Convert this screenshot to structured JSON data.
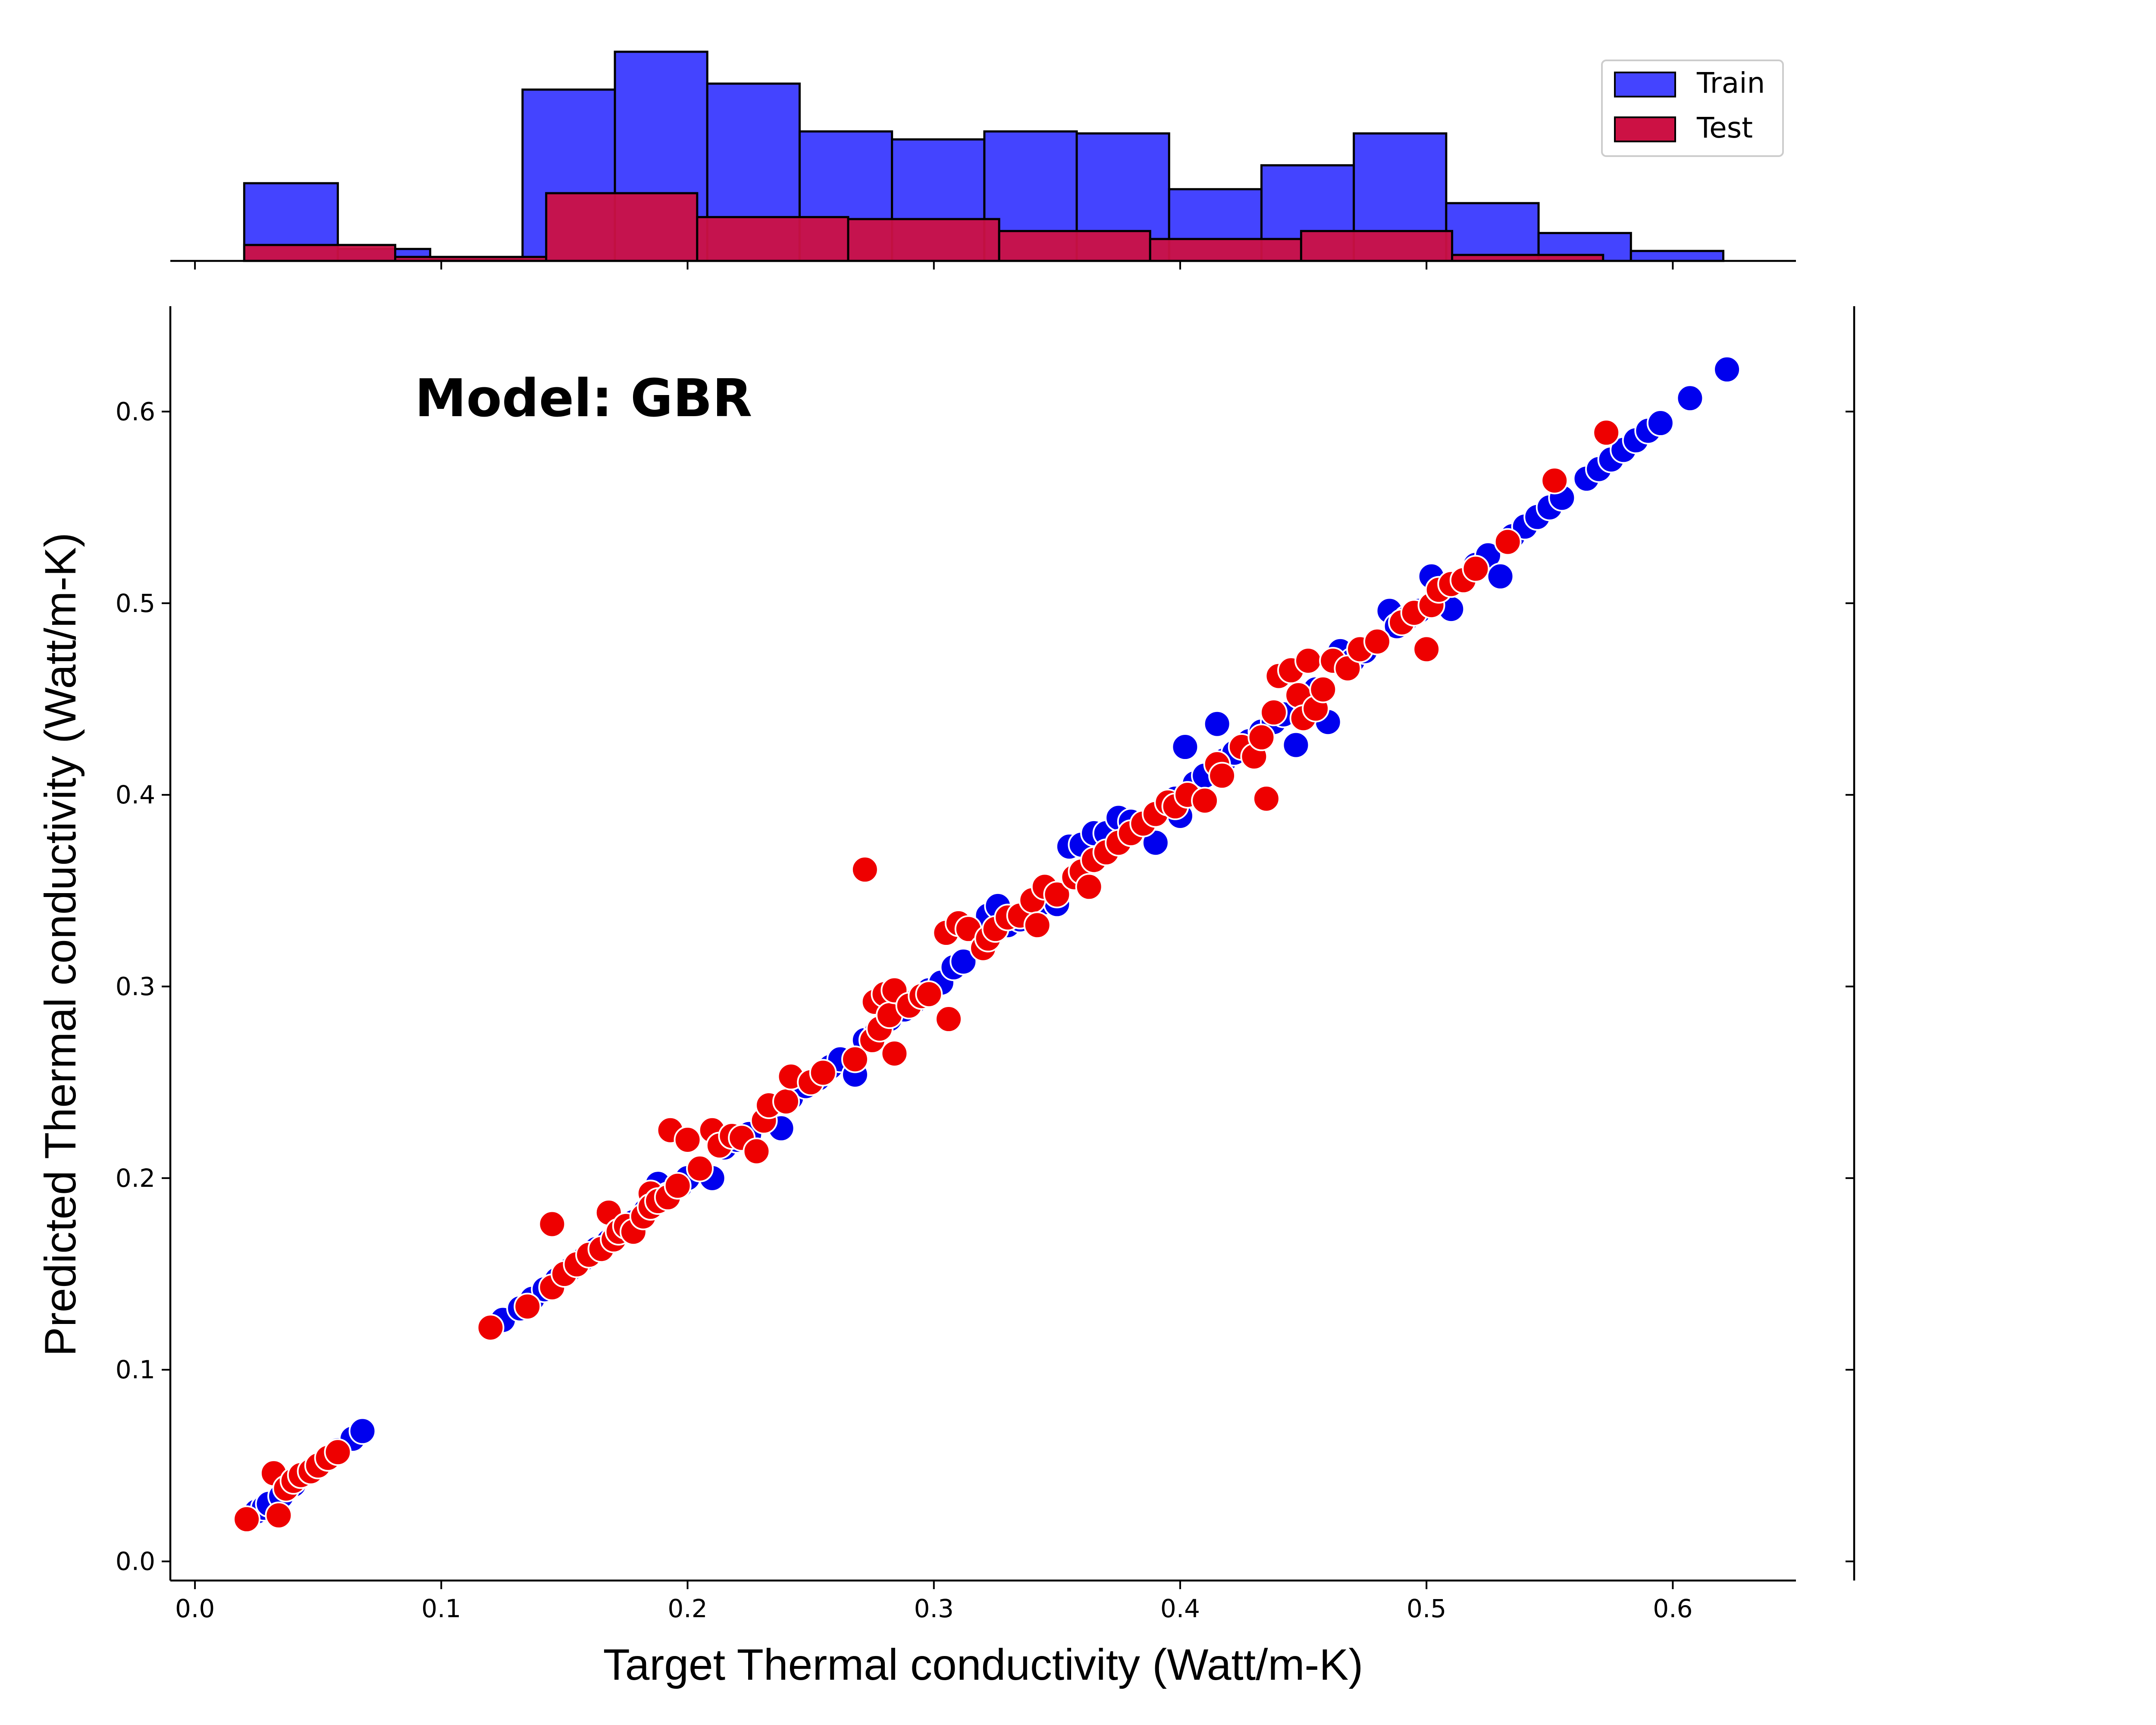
{
  "chart_data": {
    "type": "scatter",
    "annotation": "Model: GBR",
    "xlabel": "Target Thermal conductivity (Watt/m-K)",
    "ylabel": "Predicted Thermal conductivity (Watt/m-K)",
    "xlim": [
      -0.01,
      0.65
    ],
    "ylim": [
      -0.01,
      0.655
    ],
    "x_ticks": [
      "0.0",
      "0.1",
      "0.2",
      "0.3",
      "0.4",
      "0.5",
      "0.6"
    ],
    "y_ticks": [
      "0.0",
      "0.1",
      "0.2",
      "0.3",
      "0.4",
      "0.5",
      "0.6"
    ],
    "grid": false,
    "colors": {
      "train": "#0000ee",
      "test": "#ee0000",
      "train_hist": "#4444ff",
      "test_hist": "#cc1144"
    },
    "legend": {
      "position": "top-right",
      "entries": [
        "Train",
        "Test"
      ]
    },
    "series": [
      {
        "name": "Train",
        "points": [
          [
            0.021,
            0.022
          ],
          [
            0.025,
            0.026
          ],
          [
            0.028,
            0.028
          ],
          [
            0.03,
            0.03
          ],
          [
            0.035,
            0.034
          ],
          [
            0.04,
            0.04
          ],
          [
            0.046,
            0.047
          ],
          [
            0.052,
            0.052
          ],
          [
            0.058,
            0.058
          ],
          [
            0.064,
            0.064
          ],
          [
            0.068,
            0.068
          ],
          [
            0.125,
            0.126
          ],
          [
            0.132,
            0.132
          ],
          [
            0.137,
            0.137
          ],
          [
            0.142,
            0.142
          ],
          [
            0.147,
            0.147
          ],
          [
            0.152,
            0.152
          ],
          [
            0.158,
            0.158
          ],
          [
            0.163,
            0.163
          ],
          [
            0.168,
            0.167
          ],
          [
            0.172,
            0.172
          ],
          [
            0.178,
            0.177
          ],
          [
            0.183,
            0.183
          ],
          [
            0.188,
            0.197
          ],
          [
            0.192,
            0.191
          ],
          [
            0.197,
            0.196
          ],
          [
            0.2,
            0.2
          ],
          [
            0.205,
            0.205
          ],
          [
            0.21,
            0.2
          ],
          [
            0.215,
            0.216
          ],
          [
            0.22,
            0.22
          ],
          [
            0.225,
            0.223
          ],
          [
            0.232,
            0.23
          ],
          [
            0.238,
            0.226
          ],
          [
            0.242,
            0.242
          ],
          [
            0.248,
            0.248
          ],
          [
            0.253,
            0.252
          ],
          [
            0.258,
            0.258
          ],
          [
            0.262,
            0.262
          ],
          [
            0.268,
            0.254
          ],
          [
            0.272,
            0.272
          ],
          [
            0.277,
            0.277
          ],
          [
            0.282,
            0.283
          ],
          [
            0.288,
            0.288
          ],
          [
            0.292,
            0.292
          ],
          [
            0.298,
            0.298
          ],
          [
            0.303,
            0.302
          ],
          [
            0.308,
            0.31
          ],
          [
            0.312,
            0.313
          ],
          [
            0.318,
            0.33
          ],
          [
            0.322,
            0.337
          ],
          [
            0.326,
            0.342
          ],
          [
            0.33,
            0.332
          ],
          [
            0.335,
            0.335
          ],
          [
            0.34,
            0.34
          ],
          [
            0.345,
            0.344
          ],
          [
            0.35,
            0.343
          ],
          [
            0.355,
            0.373
          ],
          [
            0.36,
            0.374
          ],
          [
            0.365,
            0.38
          ],
          [
            0.37,
            0.38
          ],
          [
            0.375,
            0.388
          ],
          [
            0.38,
            0.386
          ],
          [
            0.385,
            0.383
          ],
          [
            0.39,
            0.375
          ],
          [
            0.394,
            0.394
          ],
          [
            0.398,
            0.398
          ],
          [
            0.4,
            0.389
          ],
          [
            0.402,
            0.425
          ],
          [
            0.406,
            0.406
          ],
          [
            0.41,
            0.41
          ],
          [
            0.415,
            0.437
          ],
          [
            0.418,
            0.418
          ],
          [
            0.422,
            0.422
          ],
          [
            0.428,
            0.428
          ],
          [
            0.433,
            0.433
          ],
          [
            0.438,
            0.438
          ],
          [
            0.442,
            0.442
          ],
          [
            0.447,
            0.426
          ],
          [
            0.45,
            0.45
          ],
          [
            0.455,
            0.455
          ],
          [
            0.46,
            0.438
          ],
          [
            0.465,
            0.475
          ],
          [
            0.47,
            0.47
          ],
          [
            0.475,
            0.475
          ],
          [
            0.48,
            0.48
          ],
          [
            0.485,
            0.496
          ],
          [
            0.488,
            0.488
          ],
          [
            0.492,
            0.492
          ],
          [
            0.497,
            0.496
          ],
          [
            0.502,
            0.514
          ],
          [
            0.506,
            0.506
          ],
          [
            0.51,
            0.497
          ],
          [
            0.515,
            0.512
          ],
          [
            0.52,
            0.52
          ],
          [
            0.525,
            0.525
          ],
          [
            0.53,
            0.514
          ],
          [
            0.535,
            0.535
          ],
          [
            0.54,
            0.54
          ],
          [
            0.545,
            0.545
          ],
          [
            0.55,
            0.55
          ],
          [
            0.555,
            0.555
          ],
          [
            0.565,
            0.565
          ],
          [
            0.57,
            0.57
          ],
          [
            0.575,
            0.575
          ],
          [
            0.58,
            0.58
          ],
          [
            0.585,
            0.585
          ],
          [
            0.59,
            0.59
          ],
          [
            0.595,
            0.594
          ],
          [
            0.607,
            0.607
          ],
          [
            0.622,
            0.622
          ]
        ]
      },
      {
        "name": "Test",
        "points": [
          [
            0.021,
            0.022
          ],
          [
            0.032,
            0.046
          ],
          [
            0.034,
            0.024
          ],
          [
            0.037,
            0.038
          ],
          [
            0.04,
            0.042
          ],
          [
            0.043,
            0.045
          ],
          [
            0.047,
            0.047
          ],
          [
            0.05,
            0.05
          ],
          [
            0.054,
            0.054
          ],
          [
            0.058,
            0.057
          ],
          [
            0.12,
            0.122
          ],
          [
            0.135,
            0.133
          ],
          [
            0.145,
            0.143
          ],
          [
            0.145,
            0.176
          ],
          [
            0.15,
            0.15
          ],
          [
            0.155,
            0.155
          ],
          [
            0.16,
            0.16
          ],
          [
            0.165,
            0.163
          ],
          [
            0.168,
            0.182
          ],
          [
            0.17,
            0.168
          ],
          [
            0.172,
            0.172
          ],
          [
            0.175,
            0.175
          ],
          [
            0.178,
            0.172
          ],
          [
            0.182,
            0.18
          ],
          [
            0.185,
            0.192
          ],
          [
            0.185,
            0.185
          ],
          [
            0.188,
            0.188
          ],
          [
            0.192,
            0.19
          ],
          [
            0.193,
            0.225
          ],
          [
            0.196,
            0.196
          ],
          [
            0.2,
            0.22
          ],
          [
            0.205,
            0.205
          ],
          [
            0.21,
            0.225
          ],
          [
            0.213,
            0.217
          ],
          [
            0.218,
            0.222
          ],
          [
            0.222,
            0.221
          ],
          [
            0.228,
            0.214
          ],
          [
            0.231,
            0.23
          ],
          [
            0.233,
            0.238
          ],
          [
            0.24,
            0.24
          ],
          [
            0.242,
            0.253
          ],
          [
            0.25,
            0.25
          ],
          [
            0.255,
            0.255
          ],
          [
            0.268,
            0.262
          ],
          [
            0.272,
            0.361
          ],
          [
            0.275,
            0.272
          ],
          [
            0.276,
            0.292
          ],
          [
            0.278,
            0.278
          ],
          [
            0.28,
            0.296
          ],
          [
            0.282,
            0.285
          ],
          [
            0.284,
            0.298
          ],
          [
            0.284,
            0.265
          ],
          [
            0.29,
            0.29
          ],
          [
            0.295,
            0.295
          ],
          [
            0.298,
            0.296
          ],
          [
            0.305,
            0.328
          ],
          [
            0.306,
            0.283
          ],
          [
            0.31,
            0.333
          ],
          [
            0.314,
            0.33
          ],
          [
            0.32,
            0.32
          ],
          [
            0.322,
            0.325
          ],
          [
            0.325,
            0.33
          ],
          [
            0.33,
            0.336
          ],
          [
            0.335,
            0.337
          ],
          [
            0.34,
            0.345
          ],
          [
            0.342,
            0.332
          ],
          [
            0.345,
            0.352
          ],
          [
            0.35,
            0.348
          ],
          [
            0.357,
            0.357
          ],
          [
            0.36,
            0.36
          ],
          [
            0.363,
            0.352
          ],
          [
            0.365,
            0.366
          ],
          [
            0.37,
            0.37
          ],
          [
            0.375,
            0.375
          ],
          [
            0.38,
            0.38
          ],
          [
            0.385,
            0.385
          ],
          [
            0.39,
            0.39
          ],
          [
            0.395,
            0.396
          ],
          [
            0.398,
            0.394
          ],
          [
            0.403,
            0.4
          ],
          [
            0.41,
            0.397
          ],
          [
            0.415,
            0.416
          ],
          [
            0.417,
            0.41
          ],
          [
            0.425,
            0.425
          ],
          [
            0.43,
            0.42
          ],
          [
            0.433,
            0.43
          ],
          [
            0.435,
            0.398
          ],
          [
            0.438,
            0.443
          ],
          [
            0.44,
            0.462
          ],
          [
            0.445,
            0.465
          ],
          [
            0.448,
            0.452
          ],
          [
            0.45,
            0.44
          ],
          [
            0.452,
            0.47
          ],
          [
            0.455,
            0.445
          ],
          [
            0.458,
            0.455
          ],
          [
            0.462,
            0.47
          ],
          [
            0.468,
            0.466
          ],
          [
            0.473,
            0.476
          ],
          [
            0.48,
            0.48
          ],
          [
            0.49,
            0.49
          ],
          [
            0.495,
            0.495
          ],
          [
            0.5,
            0.476
          ],
          [
            0.502,
            0.499
          ],
          [
            0.505,
            0.507
          ],
          [
            0.51,
            0.51
          ],
          [
            0.515,
            0.512
          ],
          [
            0.52,
            0.518
          ],
          [
            0.533,
            0.532
          ],
          [
            0.552,
            0.564
          ],
          [
            0.573,
            0.589
          ]
        ]
      }
    ],
    "histograms": [
      {
        "name": "Train",
        "bin_edges": [
          0.02,
          0.058,
          0.0955,
          0.133,
          0.1705,
          0.208,
          0.2455,
          0.283,
          0.3205,
          0.358,
          0.3955,
          0.433,
          0.4705,
          0.508,
          0.5455,
          0.583,
          0.6205
        ],
        "counts": [
          3.9,
          0.6,
          0.1,
          8.6,
          10.5,
          8.9,
          6.5,
          6.1,
          6.5,
          6.4,
          3.6,
          4.8,
          6.4,
          2.9,
          1.4,
          0.5
        ]
      },
      {
        "name": "Test",
        "bin_edges": [
          0.02,
          0.0813,
          0.1426,
          0.2039,
          0.2652,
          0.3265,
          0.3878,
          0.4491,
          0.5104,
          0.5717
        ],
        "counts": [
          0.8,
          0.2,
          3.4,
          2.2,
          2.1,
          1.5,
          1.1,
          1.5,
          0.3
        ]
      }
    ]
  }
}
